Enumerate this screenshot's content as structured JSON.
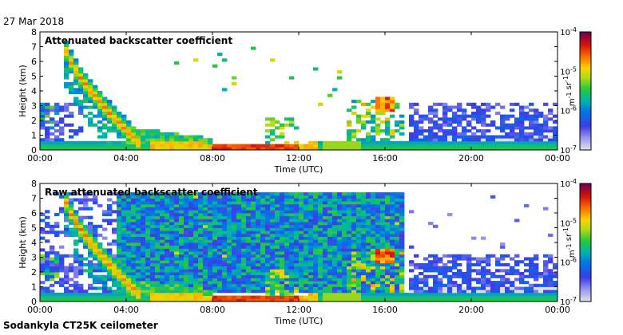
{
  "header": {
    "date": "27 Mar 2018"
  },
  "footer": {
    "instrument": "Sodankyla CT25K ceilometer"
  },
  "chart_data": [
    {
      "type": "heatmap",
      "title": "Attenuated backscatter coefficient",
      "xlabel": "Time (UTC)",
      "ylabel": "Height (km)",
      "x_ticks": [
        "00:00",
        "04:00",
        "08:00",
        "12:00",
        "16:00",
        "20:00",
        "00:00"
      ],
      "y_ticks": [
        "0",
        "1",
        "2",
        "3",
        "4",
        "5",
        "6",
        "7",
        "8"
      ],
      "xlim_hours": [
        0,
        24
      ],
      "ylim_km": [
        0,
        8
      ],
      "colorbar": {
        "label": "m-1 sr-1",
        "scale": "log",
        "ticks": [
          "10-7",
          "10-6",
          "10-5",
          "10-4"
        ],
        "range": [
          1e-07,
          0.0001
        ]
      },
      "features": {
        "surface_layer": {
          "time_hours": [
            0,
            24
          ],
          "top_km_approx": 0.6
        },
        "descending_cloud": {
          "time_hours": [
            1.2,
            4.5
          ],
          "height_km_from": 6.8,
          "height_km_to": 0.4
        },
        "boundary_layer_max_hours": [
          8,
          12
        ],
        "clouds_near_16h_km": [
          2.5,
          3.5
        ],
        "background_ends_hours": 17
      }
    },
    {
      "type": "heatmap",
      "title": "Raw attenuated backscatter coefficient",
      "xlabel": "Time (UTC)",
      "ylabel": "Height (km)",
      "x_ticks": [
        "00:00",
        "04:00",
        "08:00",
        "12:00",
        "16:00",
        "20:00",
        "00:00"
      ],
      "y_ticks": [
        "0",
        "1",
        "2",
        "3",
        "4",
        "5",
        "6",
        "7",
        "8"
      ],
      "xlim_hours": [
        0,
        24
      ],
      "ylim_km": [
        0,
        8
      ],
      "colorbar": {
        "label": "m-1 sr-1",
        "scale": "log",
        "ticks": [
          "10-7",
          "10-6",
          "10-5",
          "10-4"
        ],
        "range": [
          1e-07,
          0.0001
        ]
      },
      "features": {
        "noise_field_hours": [
          3.5,
          17
        ],
        "descending_cloud": {
          "time_hours": [
            1.2,
            4.5
          ],
          "height_km_from": 6.8,
          "height_km_to": 0.4
        }
      }
    }
  ]
}
